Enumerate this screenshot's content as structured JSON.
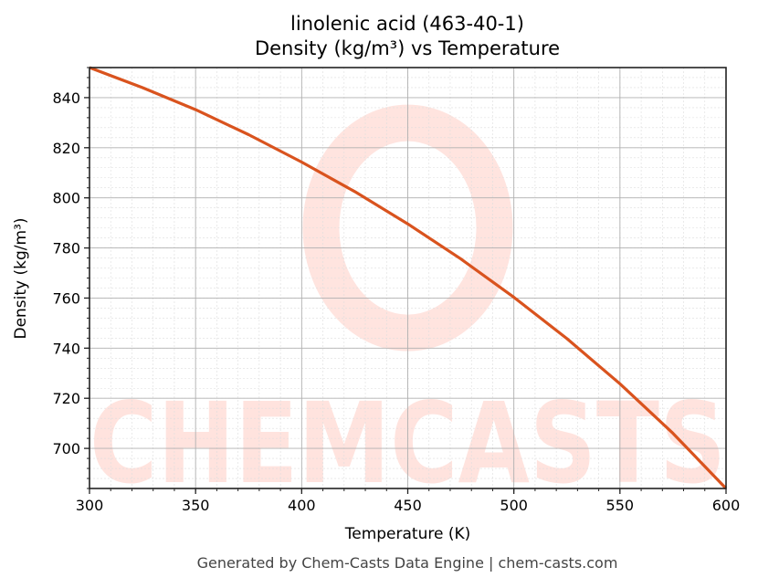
{
  "chart_data": {
    "type": "line",
    "title": "linolenic acid (463-40-1)",
    "subtitle": "Density (kg/m³) vs Temperature",
    "xlabel": "Temperature (K)",
    "ylabel": "Density (kg/m³)",
    "xlim": [
      300,
      600
    ],
    "ylim": [
      684,
      852
    ],
    "xticks": [
      300,
      350,
      400,
      450,
      500,
      550,
      600
    ],
    "yticks": [
      700,
      720,
      740,
      760,
      780,
      800,
      820,
      840
    ],
    "grid": true,
    "legend": null,
    "series": [
      {
        "name": "Density",
        "color": "#d9531e",
        "x": [
          300,
          325,
          350,
          375,
          400,
          425,
          450,
          475,
          500,
          525,
          550,
          575,
          600
        ],
        "values": [
          852.0,
          844.0,
          835.2,
          825.2,
          814.3,
          802.5,
          789.6,
          775.6,
          760.3,
          743.8,
          725.8,
          706.0,
          684.0
        ]
      }
    ]
  },
  "footer": "Generated by Chem-Casts Data Engine | chem-casts.com",
  "watermark": "CHEMCASTS"
}
